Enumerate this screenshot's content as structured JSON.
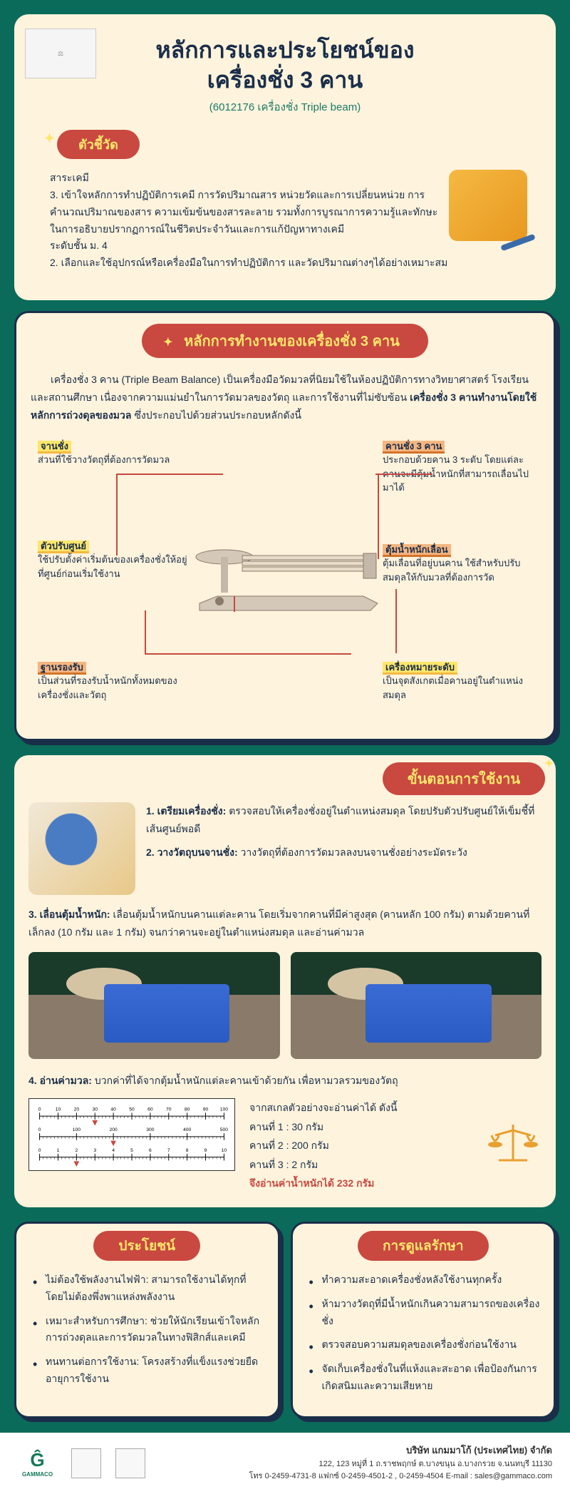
{
  "colors": {
    "page_bg": "#0a6b5a",
    "card_bg": "#fef3dc",
    "badge_bg": "#c94840",
    "badge_text": "#fce66a",
    "body_text": "#1a2e4a",
    "yellow_hl": "#fce66a",
    "orange_hl": "#f4b580",
    "dark_outline": "#1a2e4a"
  },
  "header": {
    "title_line1": "หลักการและประโยชน์ของ",
    "title_line2": "เครื่องชั่ง 3 คาน",
    "subtitle": "(6012176 เครื่องชั่ง Triple beam)",
    "indicators_label": "ตัวชี้วัด",
    "indicators_heading": "สาระเคมี",
    "indicator3": "3. เข้าใจหลักการทำปฏิบัติการเคมี การวัดปริมาณสาร หน่วยวัดและการเปลี่ยนหน่วย การคำนวณปริมาณของสาร ความเข้มข้นของสารละลาย รวมทั้งการบูรณาการความรู้และทักษะในการอธิบายปรากฏการณ์ในชีวิตประจำวันและการแก้ปัญหาทางเคมี",
    "grade_level": "ระดับชั้น ม. 4",
    "indicator2": "2. เลือกและใช้อุปกรณ์หรือเครื่องมือในการทำปฏิบัติการ และวัดปริมาณต่างๆได้อย่างเหมาะสม"
  },
  "principle": {
    "title": "หลักการทำงานของเครื่องชั่ง 3 คาน",
    "intro_part1": "เครื่องชั่ง 3 คาน (Triple Beam Balance) เป็นเครื่องมือวัดมวลที่นิยมใช้ในห้องปฏิบัติการทางวิทยาศาสตร์ โรงเรียน และสถานศึกษา เนื่องจากความแม่นยำในการวัดมวลของวัตถุ และการใช้งานที่ไม่ซับซ้อน ",
    "intro_bold": "เครื่องชั่ง 3 คานทำงานโดยใช้หลักการถ่วงดุลของมวล",
    "intro_part2": " ซึ่งประกอบไปด้วยส่วนประกอบหลักดังนี้",
    "parts": {
      "pan": {
        "title": "จานชั่ง",
        "desc": "ส่วนที่ใช้วางวัตถุที่ต้องการวัดมวล"
      },
      "beams": {
        "title": "คานชั่ง 3 คาน",
        "desc": "ประกอบด้วยคาน 3 ระดับ โดยแต่ละคานจะมีตุ้มน้ำหนักที่สามารถเลื่อนไปมาได้"
      },
      "zero": {
        "title": "ตัวปรับศูนย์",
        "desc": "ใช้ปรับตั้งค่าเริ่มต้นของเครื่องชั่งให้อยู่ที่ศูนย์ก่อนเริ่มใช้งาน"
      },
      "riders": {
        "title": "ตุ้มน้ำหนักเลื่อน",
        "desc": "ตุ้มเลื่อนที่อยู่บนคาน ใช้สำหรับปรับสมดุลให้กับมวลที่ต้องการวัด"
      },
      "base": {
        "title": "ฐานรองรับ",
        "desc": "เป็นส่วนที่รองรับน้ำหนักทั้งหมดของเครื่องชั่งและวัตถุ"
      },
      "pointer": {
        "title": "เครื่องหมายระดับ",
        "desc": "เป็นจุดสังเกตเมื่อคานอยู่ในตำแหน่งสมดุล"
      }
    }
  },
  "usage": {
    "title": "ขั้นตอนการใช้งาน",
    "step1_label": "1. เตรียมเครื่องชั่ง:",
    "step1_text": " ตรวจสอบให้เครื่องชั่งอยู่ในตำแหน่งสมดุล โดยปรับตัวปรับศูนย์ให้เข็มชี้ที่เส้นศูนย์พอดี",
    "step2_label": "2. วางวัตถุบนจานชั่ง:",
    "step2_text": " วางวัตถุที่ต้องการวัดมวลลงบนจานชั่งอย่างระมัดระวัง",
    "step3_label": "3. เลื่อนตุ้มน้ำหนัก:",
    "step3_text": " เลื่อนตุ้มน้ำหนักบนคานแต่ละคาน โดยเริ่มจากคานที่มีค่าสูงสุด (คานหลัก 100 กรัม) ตามด้วยคานที่เล็กลง (10 กรัม และ 1 กรัม) จนกว่าคานจะอยู่ในตำแหน่งสมดุล และอ่านค่ามวล",
    "step4_label": "4. อ่านค่ามวล:",
    "step4_text": " บวกค่าที่ได้จากตุ้มน้ำหนักแต่ละคานเข้าด้วยกัน เพื่อหามวลรวมของวัตถุ",
    "reading_intro": "จากสเกลตัวอย่างจะอ่านค่าได้ ดังนี้",
    "beam1": "คานที่ 1 : 30 กรัม",
    "beam2": "คานที่ 2 : 200 กรัม",
    "beam3": "คานที่ 3 : 2 กรัม",
    "result": "จึงอ่านค่าน้ำหนักได้ 232 กรัม",
    "ruler": {
      "scale1": {
        "min": 0,
        "max": 100,
        "ticks": [
          0,
          10,
          20,
          30,
          40,
          50,
          60,
          70,
          80,
          90,
          100
        ],
        "pointer": 30,
        "color": "#000"
      },
      "scale2": {
        "min": 0,
        "max": 500,
        "ticks": [
          0,
          100,
          200,
          300,
          400,
          500
        ],
        "pointer": 200,
        "color": "#000"
      },
      "scale3": {
        "min": 0,
        "max": 10,
        "ticks": [
          0,
          1,
          2,
          3,
          4,
          5,
          6,
          7,
          8,
          9,
          10
        ],
        "pointer": 2,
        "color": "#000"
      },
      "pointer_color": "#c94840"
    }
  },
  "benefits": {
    "title": "ประโยชน์",
    "items": [
      "ไม่ต้องใช้พลังงานไฟฟ้า: สามารถใช้งานได้ทุกที่ โดยไม่ต้องพึ่งพาแหล่งพลังงาน",
      "เหมาะสำหรับการศึกษา: ช่วยให้นักเรียนเข้าใจหลักการถ่วงดุลและการวัดมวลในทางฟิสิกส์และเคมี",
      "ทนทานต่อการใช้งาน: โครงสร้างที่แข็งแรงช่วยยืดอายุการใช้งาน"
    ]
  },
  "care": {
    "title": "การดูแลรักษา",
    "items": [
      "ทำความสะอาดเครื่องชั่งหลังใช้งานทุกครั้ง",
      "ห้ามวางวัตถุที่มีน้ำหนักเกินความสามารถของเครื่องชั่ง",
      "ตรวจสอบความสมดุลของเครื่องชั่งก่อนใช้งาน",
      "จัดเก็บเครื่องชั่งในที่แห้งและสะอาด เพื่อป้องกันการเกิดสนิมและความเสียหาย"
    ]
  },
  "footer": {
    "logo_text": "GAMMACO",
    "company": "บริษัท แกมมาโก้ (ประเทศไทย) จำกัด",
    "address": "122, 123 หมู่ที่ 1 ถ.ราชพฤกษ์ ต.บางขนุน อ.บางกรวย จ.นนทบุรี 11130",
    "contact": "โทร 0-2459-4731-8 แฟกซ์ 0-2459-4501-2 , 0-2459-4504 E-mail : sales@gammaco.com"
  }
}
